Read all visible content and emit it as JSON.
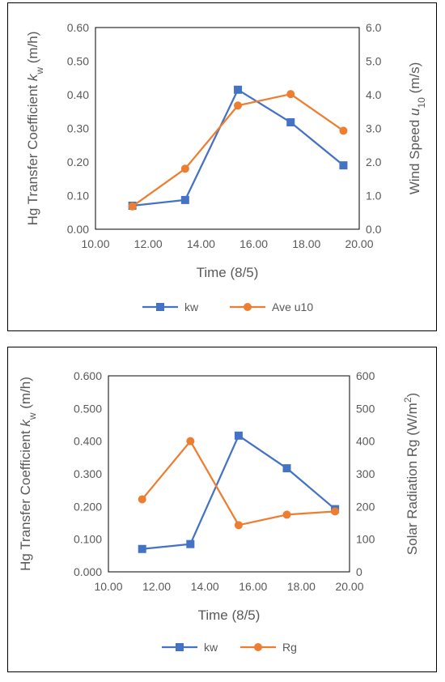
{
  "chart_data": [
    {
      "type": "line",
      "xlabel": "Time (8/5)",
      "ylabel_left": {
        "prefix": "Hg Transfer Coefficient ",
        "var": "k",
        "sub": "w",
        "suffix": " (m/h)"
      },
      "ylabel_right": {
        "prefix": "Wind Speed ",
        "var": "u",
        "sub": "10",
        "suffix": " (m/s)"
      },
      "xlim": [
        10,
        20
      ],
      "x_ticks": [
        10,
        12,
        14,
        16,
        18,
        20
      ],
      "x_tick_labels": [
        "10.00",
        "12.00",
        "14.00",
        "16.00",
        "18.00",
        "20.00"
      ],
      "ylim_left": [
        0,
        0.6
      ],
      "y_left_ticks": [
        0,
        0.1,
        0.2,
        0.3,
        0.4,
        0.5,
        0.6
      ],
      "y_left_tick_labels": [
        "0.00",
        "0.10",
        "0.20",
        "0.30",
        "0.40",
        "0.50",
        "0.60"
      ],
      "ylim_right": [
        0,
        6
      ],
      "y_right_ticks": [
        0,
        1,
        2,
        3,
        4,
        5,
        6
      ],
      "y_right_tick_labels": [
        "0.0",
        "1.0",
        "2.0",
        "3.0",
        "4.0",
        "5.0",
        "6.0"
      ],
      "grid": false,
      "legend": "bottom",
      "series": [
        {
          "name": "kw",
          "axis": "left",
          "marker": "square",
          "color": "#4472C4",
          "x": [
            11.4,
            13.4,
            15.4,
            17.4,
            19.4
          ],
          "y": [
            0.07,
            0.087,
            0.415,
            0.318,
            0.19
          ]
        },
        {
          "name": "Ave u10",
          "axis": "right",
          "marker": "circle",
          "color": "#ED7D31",
          "x": [
            11.4,
            13.4,
            15.4,
            17.4,
            19.4
          ],
          "y": [
            0.68,
            1.8,
            3.68,
            4.02,
            2.93
          ]
        }
      ]
    },
    {
      "type": "line",
      "xlabel": "Time (8/5)",
      "ylabel_left": {
        "prefix": "Hg Transfer Coefficient ",
        "var": "k",
        "sub": "w",
        "suffix": " (m/h)"
      },
      "ylabel_right": {
        "prefix": "Solar Radiation Rg (W/m",
        "sup": "2",
        "suffix": ")"
      },
      "xlim": [
        10,
        20
      ],
      "x_ticks": [
        10,
        12,
        14,
        16,
        18,
        20
      ],
      "x_tick_labels": [
        "10.00",
        "12.00",
        "14.00",
        "16.00",
        "18.00",
        "20.00"
      ],
      "ylim_left": [
        0,
        0.6
      ],
      "y_left_ticks": [
        0,
        0.1,
        0.2,
        0.3,
        0.4,
        0.5,
        0.6
      ],
      "y_left_tick_labels": [
        "0.000",
        "0.100",
        "0.200",
        "0.300",
        "0.400",
        "0.500",
        "0.600"
      ],
      "ylim_right": [
        0,
        600
      ],
      "y_right_ticks": [
        0,
        100,
        200,
        300,
        400,
        500,
        600
      ],
      "y_right_tick_labels": [
        "0",
        "100",
        "200",
        "300",
        "400",
        "500",
        "600"
      ],
      "grid": false,
      "legend": "bottom",
      "series": [
        {
          "name": "kw",
          "axis": "left",
          "marker": "square",
          "color": "#4472C4",
          "x": [
            11.4,
            13.4,
            15.4,
            17.4,
            19.4
          ],
          "y": [
            0.07,
            0.085,
            0.417,
            0.317,
            0.192
          ]
        },
        {
          "name": "Rg",
          "axis": "right",
          "marker": "circle",
          "color": "#ED7D31",
          "x": [
            11.4,
            13.4,
            15.4,
            17.4,
            19.4
          ],
          "y": [
            222,
            400,
            143,
            175,
            185
          ]
        }
      ]
    }
  ]
}
